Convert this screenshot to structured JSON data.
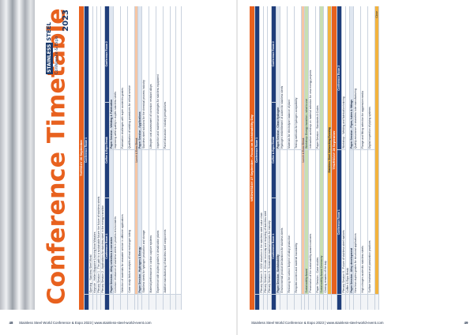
{
  "title": "Conference Timetable",
  "logo": {
    "line1": "STAINLESS",
    "line2": "STEEL",
    "line3": "Conference & Expo",
    "year": "2023"
  },
  "footer_left": {
    "page": "48",
    "text": "Stainless Steel World Conference & Expo 2023  |  www.stainless-steel-world-event.com"
  },
  "footer_right": {
    "page": "49",
    "text": "Stainless Steel World Conference & Expo 2023  |  www.stainless-steel-world-event.com"
  },
  "tuesday": {
    "day": "TUESDAY 26 September",
    "rows": [
      {
        "type": "head",
        "time": "",
        "cells": [
          "Conference Room 1"
        ]
      },
      {
        "type": "std",
        "time": "",
        "cells": [
          "Opening - Stainless Steel World"
        ]
      },
      {
        "type": "std",
        "time": "",
        "cells": [
          "Keynote - Hellen Magazine Learning from Mistakes"
        ]
      },
      {
        "type": "std",
        "time": "",
        "cells": [
          "Plenary Session 1 - The path to a sustainable future: the future of stainless steels"
        ]
      },
      {
        "type": "std",
        "time": "",
        "cells": [
          "Plenary Session 2 - Applications for stainless steel in the energy transition"
        ]
      },
      {
        "type": "head",
        "time": "",
        "cells": [
          "Conference Room 1",
          "Coffee & Expo Break",
          "Conference Room 2"
        ]
      },
      {
        "type": "sub",
        "time": "",
        "cells": [
          "Paper Session - Alloy selection & corrosion",
          "Paper Session - Welding & Fabrication"
        ]
      },
      {
        "type": "tall",
        "time": "",
        "cells": [
          "Corrosion resistance of stainless steels in process environments",
          "Improving weld quality in duplex stainless steels"
        ]
      },
      {
        "type": "tall",
        "time": "",
        "cells": [
          "Selection of materials for seawater service in offshore applications",
          "Fabrication challenges with super austenitic grades"
        ]
      },
      {
        "type": "tall",
        "time": "",
        "cells": [
          "Case study: failure analysis of heat exchanger tubing",
          "Qualification of welding procedures for critical service"
        ]
      },
      {
        "type": "break",
        "time": "",
        "cells": [
          "Lunch & Expo Break"
        ]
      },
      {
        "type": "sub",
        "time": "",
        "cells": [
          "Paper Session - Hydrogen & Energy",
          "Paper Session - Applications"
        ]
      },
      {
        "type": "tall",
        "time": "",
        "cells": [
          "Stainless steels for hydrogen production and storage",
          "Stainless steel solutions for the chemical process industry"
        ]
      },
      {
        "type": "tall",
        "time": "",
        "cells": [
          "Material performance in carbon capture systems",
          "Lifecycle cost assessment of corrosion resistant alloys"
        ]
      },
      {
        "type": "tall",
        "time": "",
        "cells": [
          "Experience with duplex grades in desalination plants",
          "Inspection and maintenance strategies for stainless equipment"
        ]
      },
      {
        "type": "tall",
        "time": "",
        "cells": [
          "Additive manufacturing of stainless steel components",
          "Panel discussion: industry perspectives"
        ]
      },
      {
        "type": "filler",
        "time": "",
        "cells": [
          ""
        ]
      },
      {
        "type": "filler",
        "time": "",
        "cells": [
          ""
        ]
      }
    ]
  },
  "wednesday": {
    "day": "WEDNESDAY 27 September - Focus on Sustainability Day",
    "rows": [
      {
        "type": "head",
        "time": "",
        "cells": [
          "Conference Room 1"
        ]
      },
      {
        "type": "std",
        "time": "",
        "cells": [
          "Plenary Session 3 - CO2 reduction in the stainless steel value chain"
        ]
      },
      {
        "type": "std",
        "time": "",
        "cells": [
          "Plenary Session 4 - Circular economy and recycling of stainless steel"
        ]
      },
      {
        "type": "std",
        "time": "",
        "cells": [
          "Plenary Session 5 - Sustainable material choices for industry"
        ]
      },
      {
        "type": "head",
        "time": "",
        "cells": [
          "Conference Room 1",
          "Coffee & Expo Break",
          "Conference Room 2"
        ]
      },
      {
        "type": "sub",
        "time": "",
        "cells": [
          "Paper Session - Sustainability",
          "Paper Session - Clean Hydrogen"
        ]
      },
      {
        "type": "tall",
        "time": "",
        "cells": [
          "Environmental product declarations for stainless steels",
          "Hydrogen embrittlement of austenitic stainless steels"
        ]
      },
      {
        "type": "tall",
        "time": "",
        "cells": [
          "Reducing the carbon footprint of alloy production",
          "Materials for electrolyser balance of plant"
        ]
      },
      {
        "type": "tall",
        "time": "",
        "cells": [
          "Recycled content and material traceability",
          "Testing methods for hydrogen compatibility"
        ]
      },
      {
        "type": "break",
        "time": "",
        "cells": [
          "Lunch & Expo Break"
        ]
      },
      {
        "type": "green",
        "time": "",
        "cells": [
          "Sustainability Award",
          "Workshop: Energy transition - what to use"
        ]
      },
      {
        "type": "tall",
        "time": "",
        "cells": [
          "Presentation of the sustainability award nominees",
          "Interactive workshop on material selection for new energy projects"
        ]
      },
      {
        "type": "std",
        "time": "",
        "cells": [
          "Paper Session - Case studies",
          "Paper Session - Standards & Codes"
        ]
      },
      {
        "type": "green",
        "time": "",
        "cells": [
          "Sustainability Award Ceremony"
        ]
      },
      {
        "type": "std",
        "time": "",
        "cells": [
          "Closing remarks of the day"
        ]
      },
      {
        "type": "gold",
        "time": "",
        "cells": [
          "Stainless Steel Networking Evening"
        ]
      },
      {
        "type": "day",
        "time": "",
        "cells": [
          "THURSDAY 28 September"
        ]
      },
      {
        "type": "head",
        "time": "",
        "cells": [
          "Conference Room 1",
          "Conference Room 2"
        ]
      },
      {
        "type": "std",
        "time": "",
        "cells": [
          "Plenary Session 6 - Future of stainless steel markets",
          "Workshop - Welding and fabrication training"
        ]
      },
      {
        "type": "std",
        "time": "",
        "cells": [
          "Coffee & Expo Break"
        ]
      },
      {
        "type": "sub",
        "time": "",
        "cells": [
          "Paper Session - Alloy development",
          "Paper Session - Pipes, tubes & fittings"
        ]
      },
      {
        "type": "tall",
        "time": "",
        "cells": [
          "New lean duplex grades for structural applications",
          "Quality assurance in seamless tube manufacturing"
        ]
      },
      {
        "type": "tall",
        "time": "",
        "cells": [
          "High nitrogen austenitic stainless steels",
          "Flange and fitting selection for aggressive media"
        ]
      },
      {
        "type": "tall",
        "time": "",
        "cells": [
          "Surface treatment and passivation practices",
          "Digital inspection of piping systems"
        ]
      },
      {
        "type": "close",
        "time": "",
        "cells": [
          "Close"
        ]
      }
    ]
  }
}
